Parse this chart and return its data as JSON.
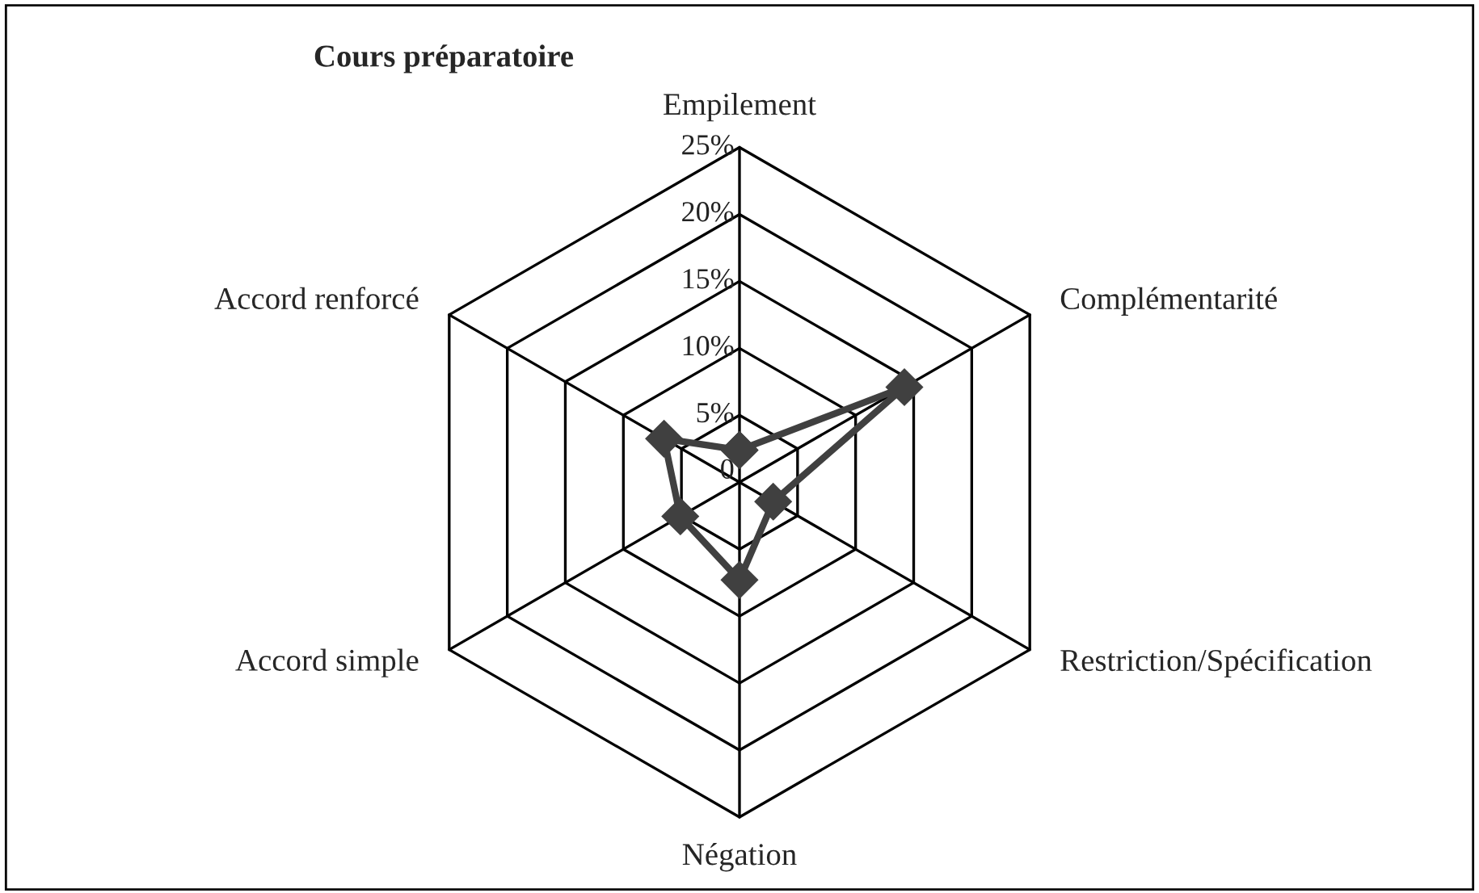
{
  "chart_data": {
    "type": "radar",
    "title": "Cours préparatoire",
    "categories": [
      "Empilement",
      "Complémentarité",
      "Restriction/Spécification",
      "Négation",
      "Accord simple",
      "Accord renforcé"
    ],
    "series": [
      {
        "color": "#404040",
        "values": [
          2.4,
          14.2,
          2.9,
          7.3,
          5.1,
          6.5
        ]
      }
    ],
    "ylim": [
      0,
      25
    ],
    "yticks": [
      {
        "value": 0,
        "label": "0"
      },
      {
        "value": 5,
        "label": "5%"
      },
      {
        "value": 10,
        "label": "10%"
      },
      {
        "value": 15,
        "label": "15%"
      },
      {
        "value": 20,
        "label": "20%"
      },
      {
        "value": 25,
        "label": "25%"
      }
    ],
    "grid": true,
    "marker": "diamond",
    "line_style": "solid"
  }
}
